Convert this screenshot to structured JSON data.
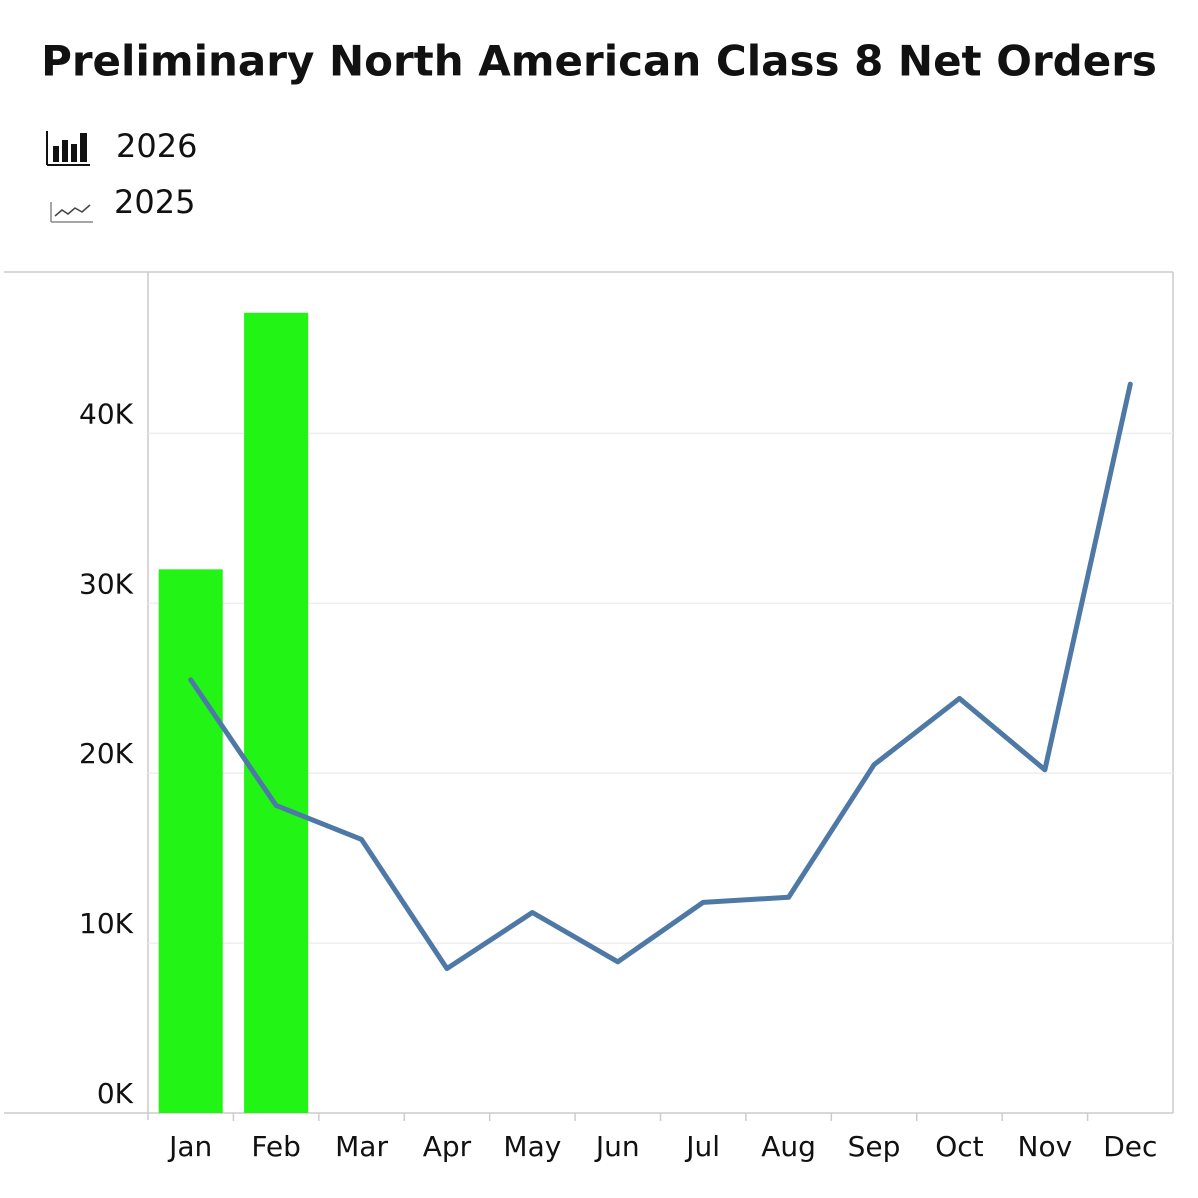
{
  "chart_data": {
    "type": "bar",
    "title": "Preliminary North American Class 8 Net Orders",
    "categories": [
      "Jan",
      "Feb",
      "Mar",
      "Apr",
      "May",
      "Jun",
      "Jul",
      "Aug",
      "Sep",
      "Oct",
      "Nov",
      "Dec"
    ],
    "series": [
      {
        "name": "2026",
        "type": "bar",
        "color": "#22f516",
        "values": [
          32000,
          47100,
          null,
          null,
          null,
          null,
          null,
          null,
          null,
          null,
          null,
          null
        ]
      },
      {
        "name": "2025",
        "type": "line",
        "color": "#4e79a7",
        "values": [
          25500,
          18100,
          16100,
          8500,
          11800,
          8900,
          12400,
          12700,
          20500,
          24400,
          20200,
          42900
        ]
      }
    ],
    "ylim": [
      0,
      49500
    ],
    "yticks": [
      {
        "value": 0,
        "label": "0K"
      },
      {
        "value": 10000,
        "label": "10K"
      },
      {
        "value": 20000,
        "label": "20K"
      },
      {
        "value": 30000,
        "label": "30K"
      },
      {
        "value": 40000,
        "label": "40K"
      }
    ],
    "grid": true
  }
}
